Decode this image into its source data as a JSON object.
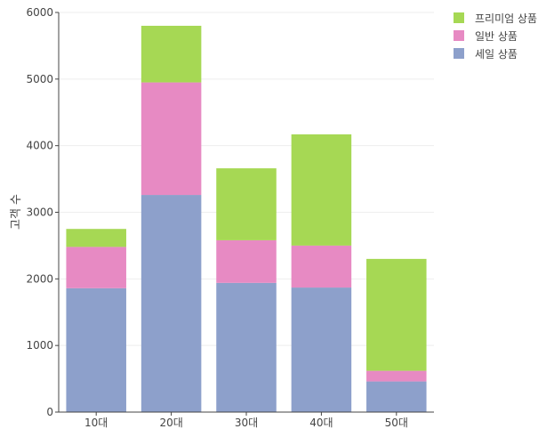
{
  "chart_data": {
    "type": "bar",
    "stacked": true,
    "title": "",
    "xlabel": "",
    "ylabel": "고객 수",
    "ylim": [
      0,
      6000
    ],
    "yticks": [
      0,
      1000,
      2000,
      3000,
      4000,
      5000,
      6000
    ],
    "categories": [
      "10대",
      "20대",
      "30대",
      "40대",
      "50대"
    ],
    "series": [
      {
        "name": "세일 상품",
        "color": "#8da0cb",
        "values": [
          1860,
          3260,
          1940,
          1870,
          460
        ]
      },
      {
        "name": "일반 상품",
        "color": "#e78ac3",
        "values": [
          620,
          1690,
          640,
          630,
          160
        ]
      },
      {
        "name": "프리미엄 상품",
        "color": "#a6d854",
        "values": [
          270,
          850,
          1080,
          1670,
          1680
        ]
      }
    ],
    "legend": {
      "position": "top-right",
      "order": [
        "프리미엄 상품",
        "일반 상품",
        "세일 상품"
      ]
    },
    "grid": true
  }
}
